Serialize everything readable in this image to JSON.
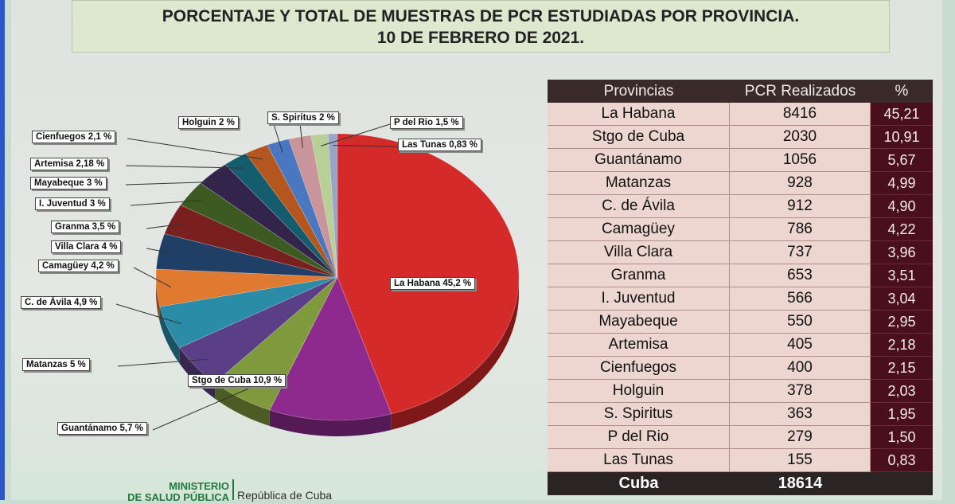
{
  "title": {
    "line1": "PORCENTAJE Y TOTAL DE MUESTRAS DE PCR ESTUDIADAS POR PROVINCIA.",
    "line2": "10 DE FEBRERO DE 2021."
  },
  "table": {
    "headers": [
      "Provincias",
      "PCR Realizados",
      "%"
    ],
    "rows": [
      {
        "province": "La Habana",
        "pcr": "8416",
        "pct": "45,21"
      },
      {
        "province": "Stgo de Cuba",
        "pcr": "2030",
        "pct": "10,91"
      },
      {
        "province": "Guantánamo",
        "pcr": "1056",
        "pct": "5,67"
      },
      {
        "province": "Matanzas",
        "pcr": "928",
        "pct": "4,99"
      },
      {
        "province": "C. de Ávila",
        "pcr": "912",
        "pct": "4,90"
      },
      {
        "province": "Camagüey",
        "pcr": "786",
        "pct": "4,22"
      },
      {
        "province": "Villa Clara",
        "pcr": "737",
        "pct": "3,96"
      },
      {
        "province": "Granma",
        "pcr": "653",
        "pct": "3,51"
      },
      {
        "province": "I.  Juventud",
        "pcr": "566",
        "pct": "3,04"
      },
      {
        "province": "Mayabeque",
        "pcr": "550",
        "pct": "2,95"
      },
      {
        "province": "Artemisa",
        "pcr": "405",
        "pct": "2,18"
      },
      {
        "province": "Cienfuegos",
        "pcr": "400",
        "pct": "2,15"
      },
      {
        "province": "Holguin",
        "pcr": "378",
        "pct": "2,03"
      },
      {
        "province": "S. Spiritus",
        "pcr": "363",
        "pct": "1,95"
      },
      {
        "province": "P del Rio",
        "pcr": "279",
        "pct": "1,50"
      },
      {
        "province": "Las Tunas",
        "pcr": "155",
        "pct": "0,83"
      }
    ],
    "total": {
      "label": "Cuba",
      "value": "18614"
    }
  },
  "chart_data": {
    "type": "pie",
    "slices": [
      {
        "label": "La Habana 45,2 %",
        "value": 45.2,
        "color": "#d42a2a"
      },
      {
        "label": "Stgo de Cuba 10,9 %",
        "value": 10.9,
        "color": "#8e2a8e"
      },
      {
        "label": "Guantánamo 5,7 %",
        "value": 5.7,
        "color": "#7f9a3c"
      },
      {
        "label": "Matanzas 5 %",
        "value": 5.0,
        "color": "#5b3f86"
      },
      {
        "label": "C. de Ávila 4,9 %",
        "value": 4.9,
        "color": "#2b8ca8"
      },
      {
        "label": "Camagüey 4,2 %",
        "value": 4.2,
        "color": "#e07a31"
      },
      {
        "label": "Villa Clara 4 %",
        "value": 4.0,
        "color": "#1f3f66"
      },
      {
        "label": "Granma 3,5 %",
        "value": 3.5,
        "color": "#7a1f1f"
      },
      {
        "label": "I.  Juventud 3 %",
        "value": 3.0,
        "color": "#3c5a22"
      },
      {
        "label": "Mayabeque 3 %",
        "value": 3.0,
        "color": "#32244a"
      },
      {
        "label": "Artemisa 2,18 %",
        "value": 2.18,
        "color": "#155c6e"
      },
      {
        "label": "Cienfuegos 2,1 %",
        "value": 2.1,
        "color": "#b5561e"
      },
      {
        "label": "Holguin 2 %",
        "value": 2.0,
        "color": "#4a78c0"
      },
      {
        "label": "S. Spiritus 2 %",
        "value": 2.0,
        "color": "#c9959a"
      },
      {
        "label": "P del Rio 1,5 %",
        "value": 1.5,
        "color": "#b8cf96"
      },
      {
        "label": "Las Tunas 0,83 %",
        "value": 0.83,
        "color": "#9aa3c8"
      }
    ]
  },
  "footer": {
    "ministry_line1": "MINISTERIO",
    "ministry_line2": "DE SALUD PÚBLICA",
    "republic": "República de Cuba"
  }
}
